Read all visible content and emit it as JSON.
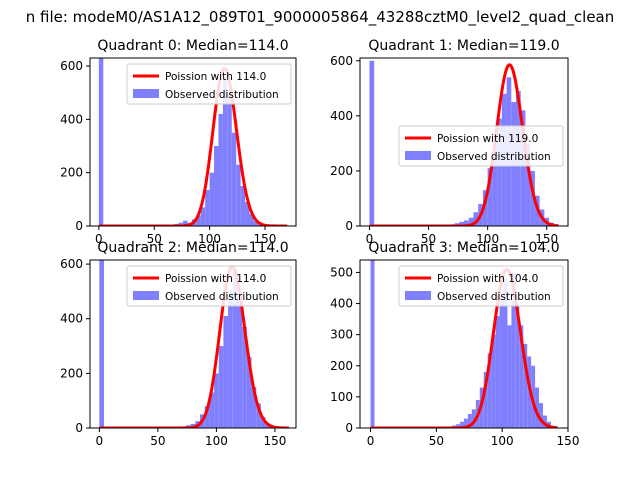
{
  "figure": {
    "suptitle": "n file: modeM0/AS1A12_089T01_9000005864_43288cztM0_level2_quad_clean"
  },
  "chart_data": [
    {
      "type": "bar",
      "title": "Quadrant 0: Median=114.0",
      "xlim": [
        -8,
        178
      ],
      "ylim": [
        0,
        630
      ],
      "xticks": [
        0,
        50,
        100,
        150
      ],
      "yticks": [
        0,
        200,
        400,
        600
      ],
      "legend": "top-right",
      "series": [
        {
          "name": "Poission with 114.0",
          "kind": "line",
          "color": "#ff0000",
          "mean": 114.0,
          "scale": 590,
          "x_range": [
            0,
            170
          ]
        },
        {
          "name": "Observed distribution",
          "kind": "hist",
          "color": "#8080ff",
          "bins": [
            [
              0,
              4,
              630
            ],
            [
              60,
              64,
              3
            ],
            [
              64,
              68,
              5
            ],
            [
              68,
              72,
              8
            ],
            [
              72,
              76,
              12
            ],
            [
              76,
              80,
              20
            ],
            [
              80,
              84,
              12
            ],
            [
              84,
              88,
              25
            ],
            [
              88,
              92,
              40
            ],
            [
              92,
              96,
              70
            ],
            [
              96,
              100,
              135
            ],
            [
              100,
              104,
              200
            ],
            [
              104,
              108,
              300
            ],
            [
              108,
              112,
              420
            ],
            [
              112,
              116,
              560
            ],
            [
              116,
              120,
              490
            ],
            [
              120,
              124,
              350
            ],
            [
              124,
              128,
              230
            ],
            [
              128,
              132,
              150
            ],
            [
              132,
              136,
              90
            ],
            [
              136,
              140,
              45
            ],
            [
              140,
              144,
              18
            ],
            [
              144,
              148,
              8
            ]
          ]
        }
      ]
    },
    {
      "type": "bar",
      "title": "Quadrant 1: Median=119.0",
      "xlim": [
        -8,
        168
      ],
      "ylim": [
        0,
        610
      ],
      "xticks": [
        0,
        50,
        100,
        150
      ],
      "yticks": [
        0,
        200,
        400,
        600
      ],
      "legend": "center-right",
      "series": [
        {
          "name": "Poission with 119.0",
          "kind": "line",
          "color": "#ff0000",
          "mean": 119.0,
          "scale": 585,
          "x_range": [
            0,
            160
          ]
        },
        {
          "name": "Observed distribution",
          "kind": "hist",
          "color": "#8080ff",
          "bins": [
            [
              0,
              4,
              600
            ],
            [
              64,
              68,
              3
            ],
            [
              68,
              72,
              6
            ],
            [
              72,
              76,
              10
            ],
            [
              76,
              80,
              15
            ],
            [
              80,
              84,
              20
            ],
            [
              84,
              88,
              30
            ],
            [
              88,
              92,
              50
            ],
            [
              92,
              96,
              80
            ],
            [
              96,
              100,
              130
            ],
            [
              100,
              104,
              210
            ],
            [
              104,
              108,
              290
            ],
            [
              108,
              112,
              390
            ],
            [
              112,
              116,
              480
            ],
            [
              116,
              120,
              540
            ],
            [
              120,
              124,
              450
            ],
            [
              124,
              128,
              490
            ],
            [
              128,
              132,
              420
            ],
            [
              132,
              136,
              300
            ],
            [
              136,
              140,
              200
            ],
            [
              140,
              144,
              110
            ],
            [
              144,
              148,
              60
            ],
            [
              148,
              152,
              30
            ],
            [
              152,
              156,
              12
            ]
          ]
        }
      ]
    },
    {
      "type": "bar",
      "title": "Quadrant 2: Median=114.0",
      "xlim": [
        -8,
        168
      ],
      "ylim": [
        0,
        615
      ],
      "xticks": [
        0,
        50,
        100,
        150
      ],
      "yticks": [
        0,
        200,
        400,
        600
      ],
      "legend": "top-right",
      "series": [
        {
          "name": "Poission with 114.0",
          "kind": "line",
          "color": "#ff0000",
          "mean": 114.0,
          "scale": 590,
          "x_range": [
            0,
            162
          ]
        },
        {
          "name": "Observed distribution",
          "kind": "hist",
          "color": "#8080ff",
          "bins": [
            [
              0,
              4,
              615
            ],
            [
              66,
              70,
              3
            ],
            [
              70,
              74,
              6
            ],
            [
              74,
              78,
              10
            ],
            [
              78,
              82,
              15
            ],
            [
              82,
              86,
              25
            ],
            [
              86,
              90,
              50
            ],
            [
              90,
              94,
              80
            ],
            [
              94,
              98,
              130
            ],
            [
              98,
              102,
              200
            ],
            [
              102,
              106,
              300
            ],
            [
              106,
              110,
              410
            ],
            [
              110,
              114,
              500
            ],
            [
              114,
              118,
              580
            ],
            [
              118,
              122,
              470
            ],
            [
              122,
              126,
              370
            ],
            [
              126,
              130,
              260
            ],
            [
              130,
              134,
              150
            ],
            [
              134,
              138,
              90
            ],
            [
              138,
              142,
              40
            ],
            [
              142,
              146,
              15
            ],
            [
              146,
              150,
              6
            ]
          ]
        }
      ]
    },
    {
      "type": "bar",
      "title": "Quadrant 3: Median=104.0",
      "xlim": [
        -8,
        150
      ],
      "ylim": [
        0,
        540
      ],
      "xticks": [
        0,
        50,
        100,
        150
      ],
      "yticks": [
        0,
        100,
        200,
        300,
        400,
        500
      ],
      "legend": "top-right",
      "series": [
        {
          "name": "Poission with 104.0",
          "kind": "line",
          "color": "#ff0000",
          "mean": 104.0,
          "scale": 510,
          "x_range": [
            0,
            142
          ]
        },
        {
          "name": "Observed distribution",
          "kind": "hist",
          "color": "#8080ff",
          "bins": [
            [
              0,
              3,
              540
            ],
            [
              56,
              59,
              3
            ],
            [
              59,
              62,
              5
            ],
            [
              62,
              65,
              8
            ],
            [
              65,
              68,
              12
            ],
            [
              68,
              71,
              20
            ],
            [
              71,
              74,
              30
            ],
            [
              74,
              77,
              45
            ],
            [
              77,
              80,
              60
            ],
            [
              80,
              83,
              90
            ],
            [
              83,
              86,
              130
            ],
            [
              86,
              89,
              180
            ],
            [
              89,
              92,
              240
            ],
            [
              92,
              95,
              300
            ],
            [
              95,
              98,
              360
            ],
            [
              98,
              101,
              420
            ],
            [
              101,
              104,
              480
            ],
            [
              104,
              107,
              330
            ],
            [
              107,
              110,
              500
            ],
            [
              110,
              113,
              390
            ],
            [
              113,
              116,
              330
            ],
            [
              116,
              119,
              270
            ],
            [
              119,
              122,
              230
            ],
            [
              122,
              125,
              200
            ],
            [
              125,
              128,
              130
            ],
            [
              128,
              131,
              80
            ],
            [
              131,
              134,
              40
            ],
            [
              134,
              137,
              20
            ]
          ]
        }
      ]
    }
  ]
}
